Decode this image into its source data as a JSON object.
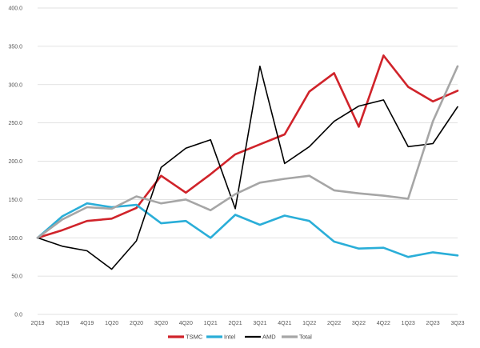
{
  "chart_data": {
    "type": "line",
    "title": "",
    "xlabel": "",
    "ylabel": "",
    "ylim": [
      0,
      400
    ],
    "yticks": [
      0,
      50,
      100,
      150,
      200,
      250,
      300,
      350,
      400
    ],
    "ytick_labels": [
      "0.0",
      "50.0",
      "100.0",
      "150.0",
      "200.0",
      "250.0",
      "300.0",
      "350.0",
      "400.0"
    ],
    "grid": true,
    "legend_position": "bottom",
    "categories": [
      "2Q19",
      "3Q19",
      "4Q19",
      "1Q20",
      "2Q20",
      "3Q20",
      "4Q20",
      "1Q21",
      "2Q21",
      "3Q21",
      "4Q21",
      "1Q22",
      "2Q22",
      "3Q22",
      "4Q22",
      "1Q23",
      "2Q23",
      "3Q23"
    ],
    "series": [
      {
        "name": "TSMC",
        "color": "#d0232a",
        "values": [
          100,
          110,
          122,
          125,
          139,
          181,
          159,
          183,
          209,
          222,
          235,
          291,
          315,
          245,
          338,
          297,
          278,
          292
        ]
      },
      {
        "name": "Intel",
        "color": "#2aaed8",
        "values": [
          100,
          128,
          145,
          140,
          143,
          119,
          122,
          100,
          130,
          117,
          129,
          122,
          95,
          86,
          87,
          75,
          81,
          77
        ]
      },
      {
        "name": "AMD",
        "color": "#000000",
        "values": [
          100,
          89,
          83,
          59,
          96,
          192,
          217,
          228,
          138,
          324,
          197,
          219,
          252,
          272,
          280,
          219,
          223,
          271
        ]
      },
      {
        "name": "Total",
        "color": "#a6a6a6",
        "values": [
          100,
          124,
          140,
          138,
          154,
          145,
          150,
          136,
          157,
          172,
          177,
          181,
          162,
          158,
          155,
          151,
          252,
          324
        ]
      }
    ]
  }
}
